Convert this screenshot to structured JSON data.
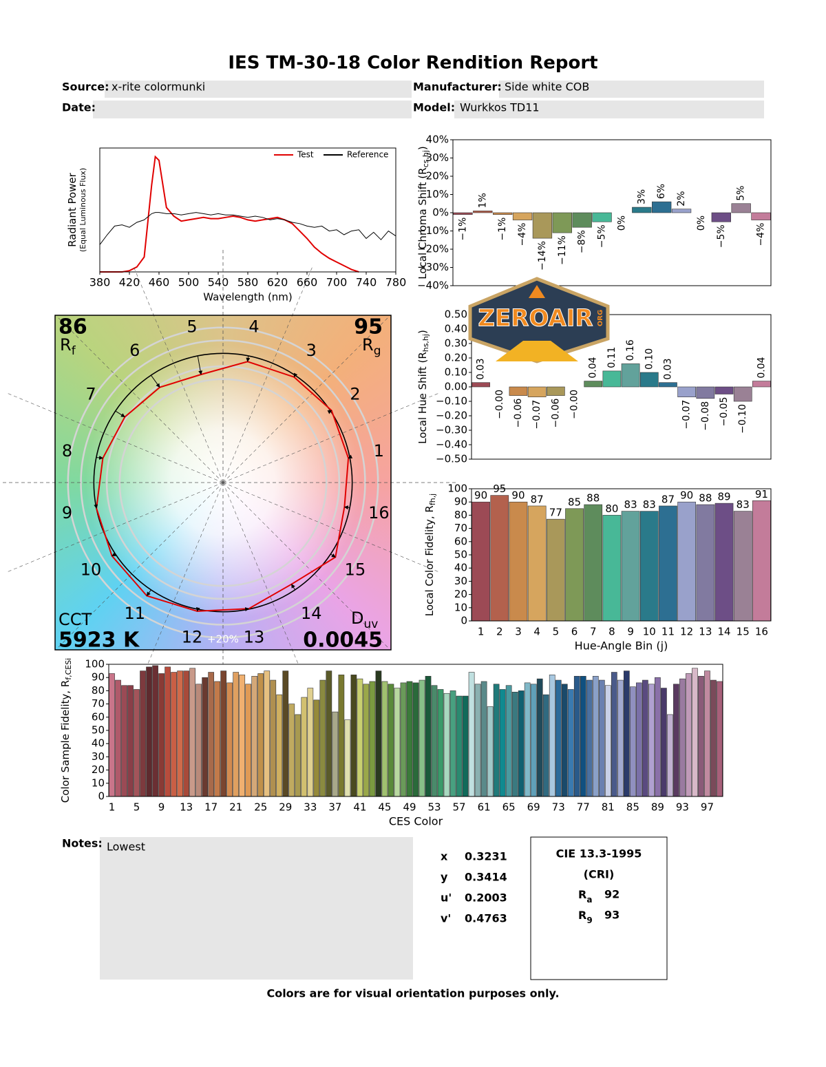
{
  "title": "IES TM-30-18 Color Rendition Report",
  "fields": {
    "source_label": "Source:",
    "source": "x-rite colormunki",
    "manufacturer_label": "Manufacturer:",
    "manufacturer": "Side white COB",
    "date_label": "Date:",
    "model_label": "Model:",
    "model": "Wurkkos TD11"
  },
  "watermark": {
    "text": "ZEROAIR",
    "sub": "ORG"
  },
  "chart_data": [
    {
      "type": "line",
      "xlabel": "Wavelength (nm)",
      "ylabel": [
        "Radiant Power",
        "(Equal Luminous Flux)"
      ],
      "x": [
        380,
        390,
        400,
        410,
        420,
        430,
        440,
        450,
        455,
        460,
        470,
        480,
        490,
        500,
        510,
        520,
        530,
        540,
        550,
        560,
        570,
        580,
        590,
        600,
        610,
        620,
        630,
        640,
        650,
        660,
        670,
        680,
        690,
        700,
        710,
        720,
        730,
        740,
        750,
        760,
        770,
        780
      ],
      "series": [
        {
          "name": "Test",
          "color": "#e00000",
          "values": [
            0,
            0,
            0,
            0,
            0.01,
            0.04,
            0.12,
            0.7,
            0.93,
            0.9,
            0.52,
            0.45,
            0.41,
            0.42,
            0.43,
            0.44,
            0.43,
            0.43,
            0.44,
            0.45,
            0.44,
            0.42,
            0.41,
            0.42,
            0.43,
            0.44,
            0.42,
            0.39,
            0.33,
            0.27,
            0.2,
            0.15,
            0.11,
            0.08,
            0.05,
            0.02,
            0,
            null,
            null,
            null,
            null,
            null
          ]
        },
        {
          "name": "Reference",
          "color": "#000000",
          "values": [
            0.22,
            0.3,
            0.37,
            0.38,
            0.36,
            0.4,
            0.42,
            0.47,
            0.48,
            0.48,
            0.47,
            0.47,
            0.46,
            0.47,
            0.48,
            0.47,
            0.46,
            0.47,
            0.46,
            0.46,
            0.45,
            0.44,
            0.45,
            0.44,
            0.42,
            0.43,
            0.42,
            0.4,
            0.39,
            0.37,
            0.36,
            0.37,
            0.33,
            0.34,
            0.3,
            0.33,
            0.34,
            0.27,
            0.32,
            0.26,
            0.33,
            0.29
          ]
        }
      ],
      "xlim": [
        380,
        780
      ],
      "ylim": [
        0,
        1
      ],
      "xticks": [
        380,
        420,
        460,
        500,
        540,
        580,
        620,
        660,
        700,
        740,
        780
      ],
      "legend": "upper right"
    },
    {
      "type": "bar",
      "ylabel": "Local Chroma Shift (R",
      "ylabel_sub": "cs,hj",
      "ylabel_end": ")",
      "values": [
        -1,
        1,
        -1,
        -4,
        -14,
        -11,
        -8,
        -5,
        0,
        3,
        6,
        2,
        0,
        -5,
        5,
        -4
      ],
      "value_labels": [
        "−1%",
        "1%",
        "−1%",
        "−4%",
        "−14%",
        "−11%",
        "−8%",
        "−5%",
        "0%",
        "3%",
        "6%",
        "2%",
        "0%",
        "−5%",
        "5%",
        "−4%"
      ],
      "colors": [
        "#9c4a55",
        "#b3614d",
        "#c98a4c",
        "#d6a55e",
        "#a9985a",
        "#7e9957",
        "#5e8c5c",
        "#48b897",
        "#62a29b",
        "#2a7a8a",
        "#2d6f92",
        "#99a1cb",
        "#817aa0",
        "#6d4e86",
        "#9a8195",
        "#c37c9a"
      ],
      "ylim": [
        -40,
        40
      ],
      "yticks": [
        {
          "value": -40,
          "label": "−40%"
        },
        {
          "value": -30,
          "label": "−30%"
        },
        {
          "value": -20,
          "label": "−20%"
        },
        {
          "value": -10,
          "label": "−10%"
        },
        {
          "value": 0,
          "label": "0%"
        },
        {
          "value": 10,
          "label": "10%"
        },
        {
          "value": 20,
          "label": "20%"
        },
        {
          "value": 30,
          "label": "30%"
        },
        {
          "value": 40,
          "label": "40%"
        }
      ]
    },
    {
      "type": "bar",
      "ylabel": "Local Hue Shift (R",
      "ylabel_sub": "hs,hj",
      "ylabel_end": ")",
      "values": [
        0.03,
        0,
        -0.06,
        -0.07,
        -0.06,
        0,
        0.04,
        0.11,
        0.16,
        0.1,
        0.03,
        -0.07,
        -0.08,
        -0.05,
        -0.1,
        0.04
      ],
      "value_labels": [
        "0.03",
        "−0.00",
        "−0.06",
        "−0.07",
        "−0.06",
        "−0.00",
        "0.04",
        "0.11",
        "0.16",
        "0.10",
        "0.03",
        "−0.07",
        "−0.08",
        "−0.05",
        "−0.10",
        "0.04"
      ],
      "colors": [
        "#9c4a55",
        "#b3614d",
        "#c98a4c",
        "#d6a55e",
        "#a9985a",
        "#7e9957",
        "#5e8c5c",
        "#48b897",
        "#62a29b",
        "#2a7a8a",
        "#2d6f92",
        "#99a1cb",
        "#817aa0",
        "#6d4e86",
        "#9a8195",
        "#c37c9a"
      ],
      "ylim": [
        -0.5,
        0.5
      ],
      "yticks": [
        {
          "value": -0.5,
          "label": "−0.50"
        },
        {
          "value": -0.4,
          "label": "−0.40"
        },
        {
          "value": -0.3,
          "label": "−0.30"
        },
        {
          "value": -0.2,
          "label": "−0.20"
        },
        {
          "value": -0.1,
          "label": "−0.10"
        },
        {
          "value": 0,
          "label": "0.00"
        },
        {
          "value": 0.1,
          "label": "0.10"
        },
        {
          "value": 0.2,
          "label": "0.20"
        },
        {
          "value": 0.3,
          "label": "0.30"
        },
        {
          "value": 0.4,
          "label": "0.40"
        },
        {
          "value": 0.5,
          "label": "0.50"
        }
      ]
    },
    {
      "type": "bar",
      "ylabel": "Local Color Fidelity, R",
      "ylabel_sub": "fh,j",
      "xlabel": "Hue-Angle Bin (j)",
      "categories": [
        "1",
        "2",
        "3",
        "4",
        "5",
        "6",
        "7",
        "8",
        "9",
        "10",
        "11",
        "12",
        "13",
        "14",
        "15",
        "16"
      ],
      "values": [
        90,
        95,
        90,
        87,
        77,
        85,
        88,
        80,
        83,
        83,
        87,
        90,
        88,
        89,
        83,
        91
      ],
      "colors": [
        "#9c4a55",
        "#b3614d",
        "#c98a4c",
        "#d6a55e",
        "#a9985a",
        "#7e9957",
        "#5e8c5c",
        "#48b897",
        "#62a29b",
        "#2a7a8a",
        "#2d6f92",
        "#99a1cb",
        "#817aa0",
        "#6d4e86",
        "#9a8195",
        "#c37c9a"
      ],
      "ylim": [
        0,
        100
      ],
      "yticks": [
        0,
        10,
        20,
        30,
        40,
        50,
        60,
        70,
        80,
        90,
        100
      ]
    },
    {
      "type": "vector",
      "categories": [
        "1",
        "2",
        "3",
        "4",
        "5",
        "6",
        "7",
        "8",
        "9",
        "10",
        "11",
        "12",
        "13",
        "14",
        "15",
        "16"
      ],
      "x": [
        0.97,
        0.84,
        0.55,
        0.19,
        -0.17,
        -0.49,
        -0.76,
        -0.93,
        -0.98,
        -0.86,
        -0.59,
        -0.2,
        0.2,
        0.53,
        0.87,
        0.94
      ],
      "y": [
        0.19,
        0.56,
        0.82,
        0.94,
        0.84,
        0.74,
        0.51,
        0.19,
        -0.2,
        -0.57,
        -0.88,
        -1.0,
        -0.98,
        -0.79,
        -0.58,
        -0.19
      ],
      "xlim": [
        -1.3,
        1.3
      ],
      "ylim": [
        -1.3,
        1.3
      ],
      "rf": 86,
      "rf_label": "R",
      "rf_sub": "f",
      "rg": 95,
      "rg_label": "R",
      "rg_sub": "g",
      "cct_label": "CCT",
      "cct": "5923 K",
      "duv_label": "D",
      "duv_sub": "uv",
      "duv": 0.0045,
      "scale_label": "+20%"
    },
    {
      "type": "bar",
      "ylabel": "Color Sample Fidelity, R",
      "ylabel_sub": "f,CESi",
      "xlabel": "CES Color",
      "categories": [
        "1",
        null,
        null,
        null,
        "5",
        null,
        null,
        null,
        "9",
        null,
        null,
        null,
        "13",
        null,
        null,
        null,
        "17",
        null,
        null,
        null,
        "21",
        null,
        null,
        null,
        "25",
        null,
        null,
        null,
        "29",
        null,
        null,
        null,
        "33",
        null,
        null,
        null,
        "37",
        null,
        null,
        null,
        "41",
        null,
        null,
        null,
        "45",
        null,
        null,
        null,
        "49",
        null,
        null,
        null,
        "53",
        null,
        null,
        null,
        "57",
        null,
        null,
        null,
        "61",
        null,
        null,
        null,
        "65",
        null,
        null,
        null,
        "69",
        null,
        null,
        null,
        "73",
        null,
        null,
        null,
        "77",
        null,
        null,
        null,
        "81",
        null,
        null,
        null,
        "85",
        null,
        null,
        null,
        "89",
        null,
        null,
        null,
        "93",
        null,
        null,
        null,
        "97",
        null,
        null
      ],
      "values": [
        93,
        88,
        84,
        84,
        81,
        95,
        98,
        99,
        93,
        98,
        94,
        95,
        95,
        97,
        85,
        90,
        94,
        87,
        95,
        86,
        94,
        92,
        85,
        91,
        93,
        95,
        88,
        77,
        95,
        70,
        62,
        75,
        82,
        73,
        88,
        95,
        64,
        92,
        58,
        92,
        89,
        85,
        87,
        95,
        87,
        85,
        82,
        86,
        87,
        86,
        88,
        91,
        84,
        81,
        78,
        80,
        76,
        76,
        94,
        85,
        87,
        68,
        85,
        81,
        84,
        79,
        80,
        86,
        85,
        89,
        77,
        92,
        88,
        85,
        81,
        91,
        91,
        88,
        91,
        88,
        84,
        94,
        88,
        95,
        83,
        86,
        88,
        85,
        90,
        82,
        62,
        85,
        89,
        93,
        97,
        91,
        95,
        88,
        87
      ],
      "colors": [
        "#c9758a",
        "#b05a6a",
        "#9b4a55",
        "#8a3e48",
        "#a3545a",
        "#7d3a3e",
        "#5e2a2e",
        "#6b2f33",
        "#8a3a35",
        "#b84c3c",
        "#c95f45",
        "#d06a4a",
        "#a84a3a",
        "#c99a8a",
        "#b98a7a",
        "#6a3a30",
        "#a86a4a",
        "#c27a4a",
        "#7a4530",
        "#d38b50",
        "#e0a060",
        "#f0b070",
        "#e09a55",
        "#d4a878",
        "#c0904a",
        "#e6c080",
        "#b09050",
        "#d0b060",
        "#5a4a25",
        "#c0aa60",
        "#a89a50",
        "#d2c070",
        "#e0d090",
        "#968a3a",
        "#8a8a40",
        "#5a5a2a",
        "#a8a88a",
        "#7a7a30",
        "#e0e0b0",
        "#4a4a20",
        "#c8d070",
        "#9aa84a",
        "#7a9a40",
        "#2a3a20",
        "#a0c070",
        "#5a8a3a",
        "#b8d8a0",
        "#6a9a5a",
        "#3a7a3a",
        "#2a6a3a",
        "#88c088",
        "#1a5a3a",
        "#4a8a6a",
        "#3a9a6a",
        "#a8d8c0",
        "#48a080",
        "#2a8a70",
        "#106a5a",
        "#c0e0e0",
        "#8ab0b0",
        "#5a8a8a",
        "#a0c8c8",
        "#207a7a",
        "#108a90",
        "#4a9aa0",
        "#3a7a80",
        "#106070",
        "#80b8c8",
        "#60a0b8",
        "#204a5a",
        "#306a80",
        "#a8c8e0",
        "#2a6a9a",
        "#1a4a6a",
        "#3a7ab0",
        "#2a5a8a",
        "#105080",
        "#4a70a0",
        "#8aa0c8",
        "#6a80b0",
        "#c8d0e8",
        "#4a5a8a",
        "#a0a8d0",
        "#2a3a6a",
        "#9090c0",
        "#7a70a8",
        "#5a4a80",
        "#b0a0d0",
        "#8a70a8",
        "#4a3a6a",
        "#c0b0d0",
        "#5a3a60",
        "#9a7aa0",
        "#c09ab8",
        "#d8b8c8",
        "#8a5a78",
        "#c08aa0",
        "#7a4a5a",
        "#a8607a"
      ],
      "ylim": [
        0,
        100
      ],
      "yticks": [
        0,
        10,
        20,
        30,
        40,
        50,
        60,
        70,
        80,
        90,
        100
      ]
    }
  ],
  "notes": {
    "label": "Notes:",
    "text": "Lowest"
  },
  "chromaticity": {
    "rows": [
      [
        "x",
        0.3231
      ],
      [
        "y",
        0.3414
      ],
      [
        "u'",
        0.2003
      ],
      [
        "v'",
        0.4763
      ]
    ]
  },
  "cri": {
    "title": "CIE 13.3-1995",
    "subtitle": "(CRI)",
    "ra_label": "R",
    "ra_sub": "a",
    "ra": 92,
    "r9_label": "R",
    "r9_sub": "9",
    "r9": 93
  },
  "footer": "Colors are for visual orientation purposes only."
}
